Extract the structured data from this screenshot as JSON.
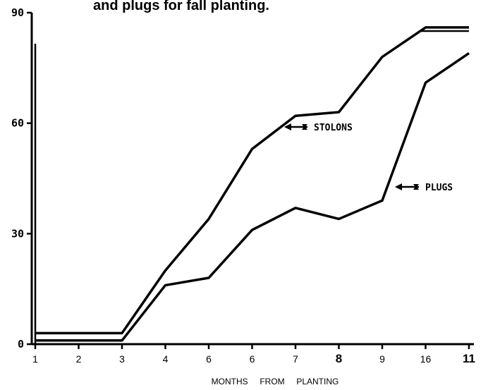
{
  "chart_data": {
    "type": "line",
    "title": "and plugs for fall planting.",
    "xlabel": "MONTHS     FROM     PLANTING",
    "ylabel": "",
    "ylim": [
      0,
      90
    ],
    "yticks": [
      "0",
      "30",
      "60",
      "90"
    ],
    "categories": [
      "1",
      "2",
      "3",
      "4",
      "6",
      "6",
      "7",
      "8",
      "9",
      "16",
      "11"
    ],
    "bold_ticks": [
      "8",
      "11"
    ],
    "series": [
      {
        "name": "STOLONS",
        "values": [
          3,
          3,
          3,
          20,
          34,
          53,
          62,
          63,
          78,
          86,
          86
        ]
      },
      {
        "name": "PLUGS",
        "values": [
          1,
          1,
          1,
          16,
          18,
          31,
          37,
          34,
          39,
          71,
          79
        ]
      }
    ],
    "grid": false
  }
}
